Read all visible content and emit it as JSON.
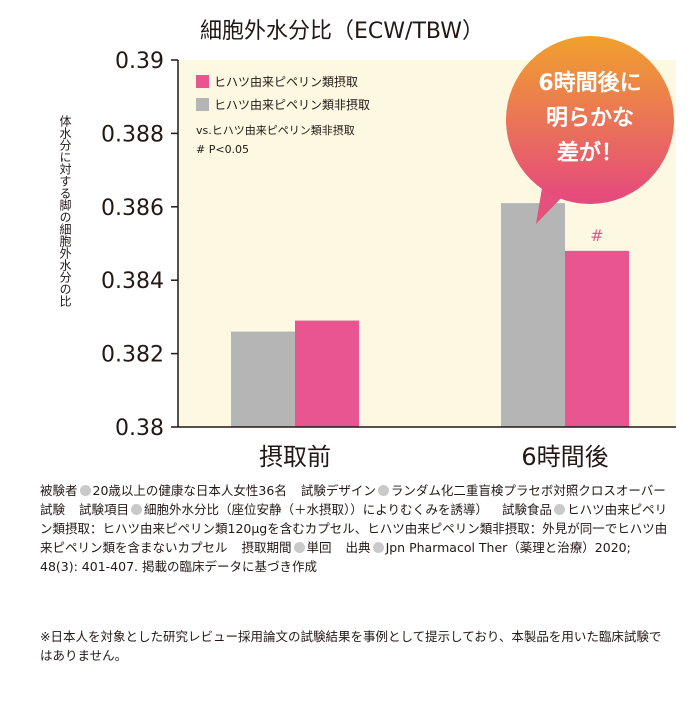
{
  "chart_data": {
    "type": "bar",
    "title": "細胞外水分比（ECW/TBW）",
    "ylabel": "体水分に対する脚の細胞外水分の比",
    "xlabel": "",
    "ylim": [
      0.38,
      0.39
    ],
    "yticks": [
      0.39,
      0.388,
      0.386,
      0.384,
      0.382,
      0.38
    ],
    "ytick_labels": [
      "0.39",
      "0.388",
      "0.386",
      "0.384",
      "0.382",
      "0.38"
    ],
    "categories": [
      "摂取前",
      "6時間後"
    ],
    "series": [
      {
        "name": "ヒハツ由来ピペリン類非摂取",
        "color": "#b5b5b6",
        "values": [
          0.3826,
          0.3861
        ]
      },
      {
        "name": "ヒハツ由来ピペリン類摂取",
        "color": "#e9568f",
        "values": [
          0.3829,
          0.3848
        ]
      }
    ],
    "legend_position": "top-left",
    "grid": false,
    "annotations": {
      "comparison": "vs.ヒハツ由来ピペリン類非摂取",
      "significance": "# P<0.05",
      "marker": "#"
    },
    "bubble": {
      "line1": "6時間後に",
      "line2": "明らかな",
      "line3": "差が！"
    },
    "colors": {
      "plot_background": "#fdf8e1",
      "bubble_top": "#f0a12d",
      "bubble_bottom": "#e5487f"
    }
  },
  "notes": {
    "study": [
      {
        "label": "被験者",
        "text": "20歳以上の健康な日本人女性36名"
      },
      {
        "label": "試験デザイン",
        "text": "ランダム化二重盲検プラセボ対照クロスオーバー試験"
      },
      {
        "label": "試験項目",
        "text": "細胞外水分比（座位安静（＋水摂取））によりむくみを誘導）"
      },
      {
        "label": "試験食品",
        "text": "ヒハツ由来ピペリン類摂取：ヒハツ由来ピペリン類120μgを含むカプセル、ヒハツ由来ピペリン類非摂取：外見が同一でヒハツ由来ピペリン類を含まないカプセル"
      },
      {
        "label": "摂取期間",
        "text": "単回"
      },
      {
        "label": "出典",
        "text": "Jpn Pharmacol Ther（薬理と治療）2020; 48(3): 401-407. 掲載の臨床データに基づき作成"
      }
    ],
    "disclaimer": "※日本人を対象とした研究レビュー採用論文の試験結果を事例として提示しており、本製品を用いた臨床試験ではありません。"
  }
}
